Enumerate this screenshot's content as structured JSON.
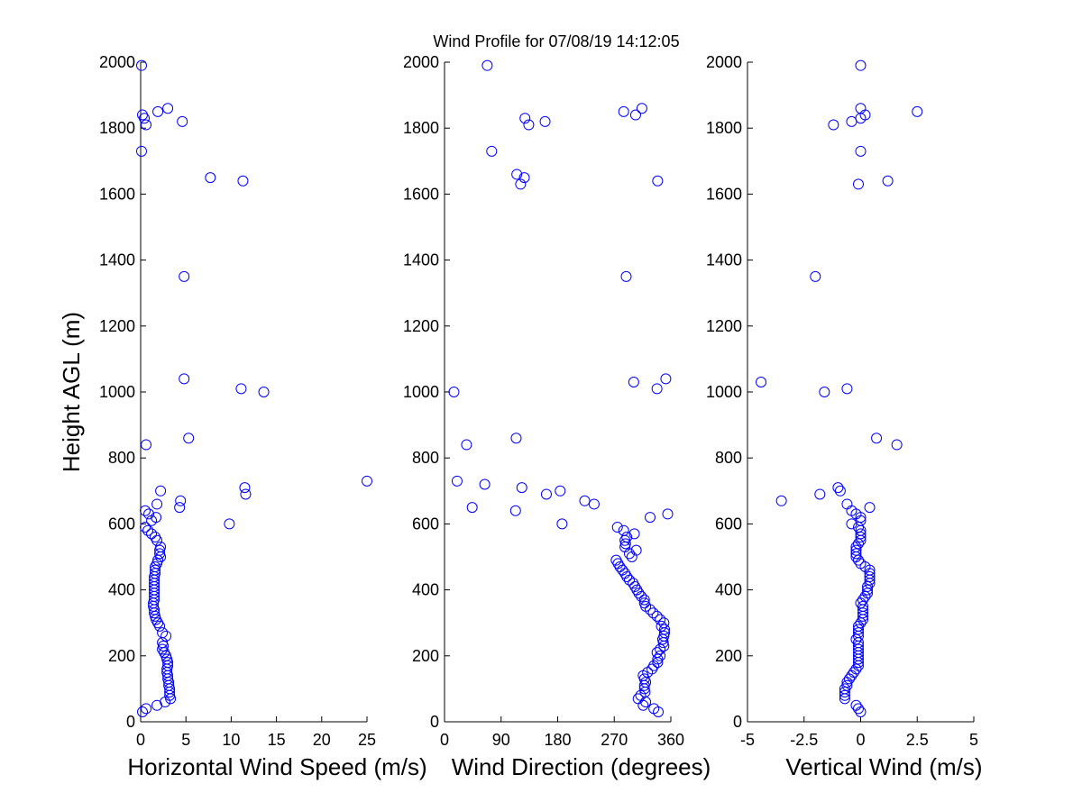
{
  "title": "Wind Profile for  07/08/19 14:12:05",
  "ylabel": "Height AGL (m)",
  "chart_data": [
    {
      "type": "scatter",
      "name": "speed",
      "xlabel": "Horizontal Wind Speed (m/s)",
      "xlim": [
        0,
        25
      ],
      "xticks": [
        0,
        5,
        10,
        15,
        20,
        25
      ],
      "xtick_labels": [
        "0",
        "5",
        "10",
        "15",
        "20",
        "25"
      ],
      "ylim": [
        0,
        2000
      ],
      "yticks": [
        0,
        200,
        400,
        600,
        800,
        1000,
        1200,
        1400,
        1600,
        1800,
        2000
      ],
      "ytick_labels": [
        "0",
        "200",
        "400",
        "600",
        "800",
        "1000",
        "1200",
        "1400",
        "1600",
        "1800",
        "2000"
      ],
      "points": [
        [
          0.6,
          40
        ],
        [
          0.2,
          30
        ],
        [
          1.8,
          50
        ],
        [
          2.7,
          60
        ],
        [
          3.3,
          70
        ],
        [
          3.2,
          80
        ],
        [
          3.2,
          90
        ],
        [
          3.2,
          100
        ],
        [
          3.1,
          110
        ],
        [
          3.1,
          120
        ],
        [
          3.0,
          130
        ],
        [
          3.0,
          140
        ],
        [
          2.9,
          150
        ],
        [
          2.9,
          160
        ],
        [
          3.0,
          170
        ],
        [
          3.0,
          180
        ],
        [
          2.9,
          190
        ],
        [
          2.8,
          200
        ],
        [
          2.6,
          210
        ],
        [
          2.4,
          220
        ],
        [
          2.5,
          230
        ],
        [
          2.4,
          240
        ],
        [
          2.8,
          260
        ],
        [
          2.4,
          270
        ],
        [
          2.1,
          290
        ],
        [
          1.9,
          300
        ],
        [
          1.7,
          310
        ],
        [
          1.6,
          320
        ],
        [
          1.5,
          330
        ],
        [
          1.5,
          340
        ],
        [
          1.4,
          350
        ],
        [
          1.4,
          360
        ],
        [
          1.5,
          370
        ],
        [
          1.5,
          380
        ],
        [
          1.5,
          390
        ],
        [
          1.5,
          400
        ],
        [
          1.5,
          410
        ],
        [
          1.5,
          420
        ],
        [
          1.5,
          430
        ],
        [
          1.5,
          440
        ],
        [
          1.6,
          450
        ],
        [
          1.6,
          460
        ],
        [
          1.6,
          470
        ],
        [
          1.8,
          480
        ],
        [
          1.9,
          490
        ],
        [
          2.2,
          500
        ],
        [
          2.1,
          510
        ],
        [
          2.1,
          520
        ],
        [
          2.2,
          530
        ],
        [
          1.8,
          550
        ],
        [
          1.6,
          560
        ],
        [
          1.2,
          570
        ],
        [
          0.8,
          580
        ],
        [
          0.5,
          590
        ],
        [
          9.8,
          600
        ],
        [
          1.2,
          610
        ],
        [
          1.7,
          620
        ],
        [
          0.9,
          630
        ],
        [
          0.5,
          640
        ],
        [
          4.3,
          650
        ],
        [
          1.8,
          660
        ],
        [
          4.4,
          670
        ],
        [
          11.6,
          690
        ],
        [
          2.2,
          700
        ],
        [
          11.5,
          710
        ],
        [
          25,
          730
        ],
        [
          0.6,
          840
        ],
        [
          5.3,
          860
        ],
        [
          13.6,
          1000
        ],
        [
          11.1,
          1010
        ],
        [
          4.8,
          1040
        ],
        [
          4.8,
          1350
        ],
        [
          11.3,
          1640
        ],
        [
          7.7,
          1650
        ],
        [
          0.1,
          1730
        ],
        [
          0.6,
          1810
        ],
        [
          4.6,
          1820
        ],
        [
          0.4,
          1830
        ],
        [
          0.2,
          1840
        ],
        [
          1.9,
          1850
        ],
        [
          3.0,
          1860
        ],
        [
          0.1,
          1990
        ]
      ]
    },
    {
      "type": "scatter",
      "name": "direction",
      "xlabel": "Wind Direction (degrees)",
      "xlim": [
        0,
        360
      ],
      "xticks": [
        0,
        90,
        180,
        270,
        360
      ],
      "xtick_labels": [
        "0",
        "90",
        "180",
        "270",
        "360"
      ],
      "ylim": [
        0,
        2000
      ],
      "yticks": [
        0,
        200,
        400,
        600,
        800,
        1000,
        1200,
        1400,
        1600,
        1800,
        2000
      ],
      "ytick_labels": [
        "0",
        "200",
        "400",
        "600",
        "800",
        "1000",
        "1200",
        "1400",
        "1600",
        "1800",
        "2000"
      ],
      "points": [
        [
          340,
          30
        ],
        [
          333,
          40
        ],
        [
          316,
          50
        ],
        [
          320,
          60
        ],
        [
          308,
          70
        ],
        [
          312,
          80
        ],
        [
          319,
          90
        ],
        [
          318,
          100
        ],
        [
          318,
          110
        ],
        [
          320,
          120
        ],
        [
          318,
          130
        ],
        [
          316,
          140
        ],
        [
          323,
          150
        ],
        [
          330,
          160
        ],
        [
          333,
          170
        ],
        [
          339,
          180
        ],
        [
          339,
          190
        ],
        [
          343,
          200
        ],
        [
          338,
          210
        ],
        [
          343,
          220
        ],
        [
          349,
          230
        ],
        [
          348,
          240
        ],
        [
          347,
          250
        ],
        [
          349,
          260
        ],
        [
          350,
          270
        ],
        [
          350,
          280
        ],
        [
          345,
          290
        ],
        [
          349,
          300
        ],
        [
          343,
          310
        ],
        [
          338,
          320
        ],
        [
          332,
          330
        ],
        [
          327,
          340
        ],
        [
          320,
          350
        ],
        [
          318,
          360
        ],
        [
          318,
          370
        ],
        [
          313,
          380
        ],
        [
          309,
          390
        ],
        [
          306,
          400
        ],
        [
          303,
          410
        ],
        [
          300,
          420
        ],
        [
          294,
          430
        ],
        [
          290,
          440
        ],
        [
          287,
          450
        ],
        [
          283,
          460
        ],
        [
          279,
          470
        ],
        [
          276,
          480
        ],
        [
          273,
          490
        ],
        [
          298,
          500
        ],
        [
          294,
          510
        ],
        [
          305,
          520
        ],
        [
          287,
          530
        ],
        [
          288,
          540
        ],
        [
          287,
          550
        ],
        [
          290,
          560
        ],
        [
          302,
          570
        ],
        [
          285,
          580
        ],
        [
          275,
          590
        ],
        [
          187,
          600
        ],
        [
          327,
          620
        ],
        [
          355,
          630
        ],
        [
          113,
          640
        ],
        [
          44,
          650
        ],
        [
          238,
          660
        ],
        [
          223,
          670
        ],
        [
          162,
          690
        ],
        [
          184,
          700
        ],
        [
          123,
          710
        ],
        [
          64,
          720
        ],
        [
          20,
          730
        ],
        [
          35,
          840
        ],
        [
          114,
          860
        ],
        [
          15,
          1000
        ],
        [
          338,
          1010
        ],
        [
          301,
          1030
        ],
        [
          352,
          1040
        ],
        [
          289,
          1350
        ],
        [
          121,
          1630
        ],
        [
          339,
          1640
        ],
        [
          127,
          1650
        ],
        [
          115,
          1660
        ],
        [
          75,
          1730
        ],
        [
          134,
          1810
        ],
        [
          160,
          1820
        ],
        [
          128,
          1830
        ],
        [
          304,
          1840
        ],
        [
          285,
          1850
        ],
        [
          314,
          1860
        ],
        [
          68,
          1990
        ]
      ]
    },
    {
      "type": "scatter",
      "name": "vertical",
      "xlabel": "Vertical Wind (m/s)",
      "xlim": [
        -5,
        5
      ],
      "xticks": [
        -5,
        -2.5,
        0,
        2.5,
        5
      ],
      "xtick_labels": [
        "-5",
        "-2.5",
        "0",
        "2.5",
        "5"
      ],
      "ylim": [
        0,
        2000
      ],
      "yticks": [
        0,
        200,
        400,
        600,
        800,
        1000,
        1200,
        1400,
        1600,
        1800,
        2000
      ],
      "ytick_labels": [
        "0",
        "200",
        "400",
        "600",
        "800",
        "1000",
        "1200",
        "1400",
        "1600",
        "1800",
        "2000"
      ],
      "points": [
        [
          0.0,
          30
        ],
        [
          -0.1,
          40
        ],
        [
          -0.2,
          50
        ],
        [
          -0.7,
          70
        ],
        [
          -0.7,
          80
        ],
        [
          -0.7,
          90
        ],
        [
          -0.7,
          100
        ],
        [
          -0.6,
          110
        ],
        [
          -0.6,
          120
        ],
        [
          -0.5,
          130
        ],
        [
          -0.4,
          140
        ],
        [
          -0.3,
          150
        ],
        [
          -0.2,
          160
        ],
        [
          -0.1,
          170
        ],
        [
          -0.1,
          180
        ],
        [
          -0.1,
          190
        ],
        [
          -0.1,
          200
        ],
        [
          -0.1,
          210
        ],
        [
          -0.1,
          220
        ],
        [
          -0.1,
          230
        ],
        [
          -0.1,
          240
        ],
        [
          -0.2,
          250
        ],
        [
          -0.1,
          260
        ],
        [
          -0.1,
          270
        ],
        [
          -0.1,
          280
        ],
        [
          -0.1,
          290
        ],
        [
          0.0,
          300
        ],
        [
          0.1,
          310
        ],
        [
          0.1,
          320
        ],
        [
          0.1,
          330
        ],
        [
          0.1,
          340
        ],
        [
          0.1,
          350
        ],
        [
          0.0,
          360
        ],
        [
          0.1,
          370
        ],
        [
          0.2,
          380
        ],
        [
          0.3,
          390
        ],
        [
          0.3,
          400
        ],
        [
          0.3,
          410
        ],
        [
          0.4,
          420
        ],
        [
          0.4,
          430
        ],
        [
          0.4,
          440
        ],
        [
          0.4,
          450
        ],
        [
          0.4,
          460
        ],
        [
          0.2,
          470
        ],
        [
          0.0,
          480
        ],
        [
          -0.1,
          490
        ],
        [
          -0.2,
          500
        ],
        [
          -0.2,
          510
        ],
        [
          -0.2,
          520
        ],
        [
          -0.2,
          530
        ],
        [
          -0.1,
          540
        ],
        [
          0.0,
          550
        ],
        [
          0.0,
          560
        ],
        [
          0.0,
          570
        ],
        [
          0.0,
          580
        ],
        [
          -0.1,
          590
        ],
        [
          -0.4,
          600
        ],
        [
          0.0,
          610
        ],
        [
          0.0,
          620
        ],
        [
          -0.2,
          630
        ],
        [
          -0.4,
          640
        ],
        [
          0.4,
          650
        ],
        [
          -0.6,
          660
        ],
        [
          -3.5,
          670
        ],
        [
          -1.8,
          690
        ],
        [
          -0.9,
          700
        ],
        [
          -1.0,
          710
        ],
        [
          1.6,
          840
        ],
        [
          0.7,
          860
        ],
        [
          -1.6,
          1000
        ],
        [
          -0.6,
          1010
        ],
        [
          -4.4,
          1030
        ],
        [
          -2.0,
          1350
        ],
        [
          -0.1,
          1630
        ],
        [
          1.2,
          1640
        ],
        [
          0.0,
          1730
        ],
        [
          -1.2,
          1810
        ],
        [
          -0.4,
          1820
        ],
        [
          0.0,
          1830
        ],
        [
          0.2,
          1840
        ],
        [
          2.5,
          1850
        ],
        [
          0.0,
          1860
        ],
        [
          0.0,
          1990
        ]
      ]
    }
  ]
}
